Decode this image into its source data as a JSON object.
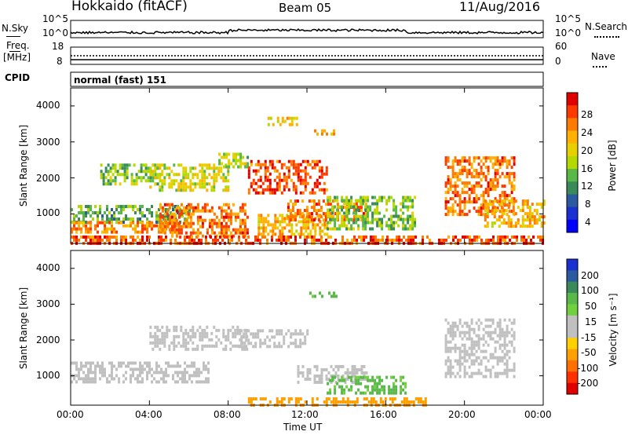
{
  "header": {
    "station": "Hokkaido (fitACF)",
    "beam": "Beam 05",
    "date": "11/Aug/2016"
  },
  "noise_panel": {
    "left_label": "N.Sky",
    "right_label": "N.Search",
    "tick_top": "10^5",
    "tick_bottom": "10^0",
    "scale": "log"
  },
  "freq_panel": {
    "label_line1": "Freq.",
    "label_line2": "[MHz]",
    "left_ticks": [
      "18",
      "8"
    ],
    "right_ticks": [
      "60",
      "0"
    ],
    "right_label": "Nave"
  },
  "cpid_panel": {
    "label": "CPID",
    "text": "normal (fast) 151"
  },
  "axes": {
    "ylabel": "Slant Range [km]",
    "xlabel": "Time UT",
    "yticks": [
      "4000",
      "3000",
      "2000",
      "1000"
    ],
    "xticks": [
      "00:00",
      "04:00",
      "08:00",
      "12:00",
      "16:00",
      "20:00",
      "00:00"
    ]
  },
  "colorbars": {
    "power": {
      "label": "Power [dB]",
      "ticks": [
        "28",
        "24",
        "20",
        "16",
        "12",
        "8",
        "4"
      ],
      "colors": [
        "#e00000",
        "#ff3a00",
        "#ff7a00",
        "#ffb000",
        "#e8d000",
        "#b4d800",
        "#58b848",
        "#3a8a5a",
        "#2a5aa0",
        "#1a30d0",
        "#0000ff"
      ]
    },
    "velocity": {
      "label": "Velocity [m s⁻¹]",
      "ticks": [
        "200",
        "100",
        "50",
        "15",
        "-15",
        "-50",
        "-100",
        "-200"
      ],
      "colors": [
        "#1a30d0",
        "#2a5aa0",
        "#3a8a5a",
        "#58b848",
        "#70d040",
        "#c0c0c0",
        "#c0c0c0",
        "#ffd000",
        "#ffa000",
        "#ff7000",
        "#ff3000",
        "#e00000"
      ]
    }
  },
  "chart_data": {
    "type": "heatmap",
    "x_unit": "hours UT",
    "xlim": [
      0,
      24
    ],
    "ylim": [
      180,
      4500
    ],
    "ground_scatter_color": "#c0c0c0",
    "power_regions": [
      {
        "t": [
          0.0,
          6.0
        ],
        "r": [
          800,
          1250
        ],
        "level": 12
      },
      {
        "t": [
          0.0,
          5.5
        ],
        "r": [
          500,
          800
        ],
        "level": 24
      },
      {
        "t": [
          1.5,
          4.5
        ],
        "r": [
          1800,
          2400
        ],
        "level": 14
      },
      {
        "t": [
          4.5,
          9.0
        ],
        "r": [
          400,
          1300
        ],
        "level": 26
      },
      {
        "t": [
          4.0,
          8.0
        ],
        "r": [
          1700,
          2400
        ],
        "level": 18
      },
      {
        "t": [
          7.5,
          9.0
        ],
        "r": [
          2300,
          2700
        ],
        "level": 16
      },
      {
        "t": [
          9.0,
          13.0
        ],
        "r": [
          1600,
          2500
        ],
        "level": 28
      },
      {
        "t": [
          9.5,
          13.0
        ],
        "r": [
          400,
          1000
        ],
        "level": 22
      },
      {
        "t": [
          11.0,
          15.0
        ],
        "r": [
          800,
          1400
        ],
        "level": 26
      },
      {
        "t": [
          13.0,
          17.5
        ],
        "r": [
          600,
          1500
        ],
        "level": 14
      },
      {
        "t": [
          19.0,
          22.5
        ],
        "r": [
          1000,
          2600
        ],
        "level": 26
      },
      {
        "t": [
          21.0,
          24.0
        ],
        "r": [
          700,
          1400
        ],
        "level": 22
      },
      {
        "t": [
          0.0,
          24.0
        ],
        "r": [
          180,
          400
        ],
        "level": 28
      },
      {
        "t": [
          12.0,
          13.5
        ],
        "r": [
          3200,
          3350
        ],
        "level": 24
      },
      {
        "t": [
          10.0,
          11.5
        ],
        "r": [
          3500,
          3700
        ],
        "level": 20
      }
    ],
    "velocity_regions": [
      {
        "t": [
          0.0,
          7.0
        ],
        "r": [
          800,
          1400
        ],
        "vel": 0
      },
      {
        "t": [
          4.0,
          9.0
        ],
        "r": [
          1700,
          2400
        ],
        "vel": 0
      },
      {
        "t": [
          8.5,
          12.0
        ],
        "r": [
          1800,
          2300
        ],
        "vel": 0
      },
      {
        "t": [
          11.5,
          15.0
        ],
        "r": [
          800,
          1300
        ],
        "vel": 0
      },
      {
        "t": [
          13.0,
          17.0
        ],
        "r": [
          500,
          1000
        ],
        "vel": 40
      },
      {
        "t": [
          19.0,
          22.5
        ],
        "r": [
          1000,
          2600
        ],
        "vel": 0
      },
      {
        "t": [
          9.0,
          18.0
        ],
        "r": [
          180,
          400
        ],
        "vel": -60
      },
      {
        "t": [
          12.0,
          13.5
        ],
        "r": [
          3200,
          3350
        ],
        "vel": 40
      }
    ]
  }
}
